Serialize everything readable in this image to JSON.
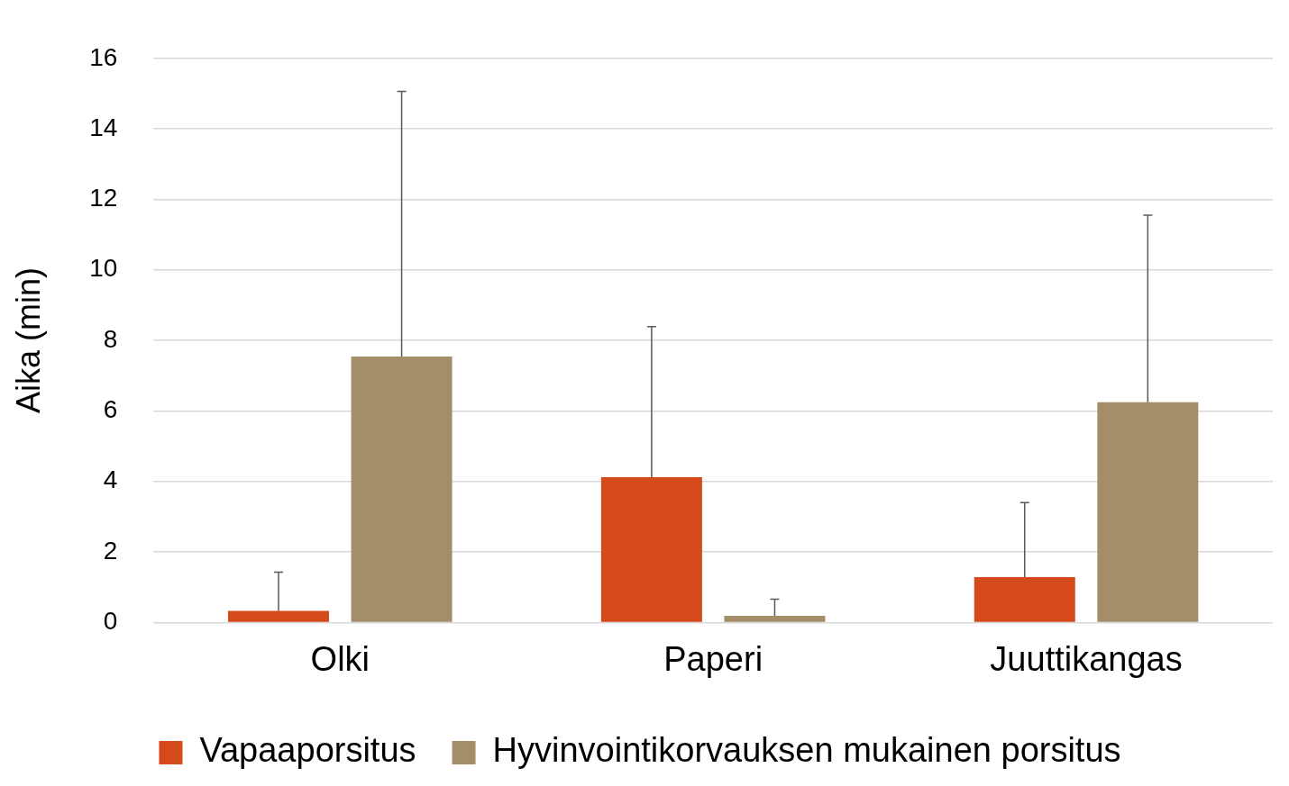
{
  "chart_data": {
    "type": "bar",
    "ylabel": "Aika (min)",
    "categories": [
      "Olki",
      "Paperi",
      "Juuttikangas"
    ],
    "series": [
      {
        "name": "Vapaaporsitus",
        "color": "#d54a1a",
        "values": [
          0.33,
          4.12,
          1.29
        ],
        "errors": [
          [
            0.33,
            1.43
          ],
          [
            4.12,
            8.39
          ],
          [
            1.29,
            3.4
          ]
        ]
      },
      {
        "name": "Hyvinvointikorvauksen mukainen porsitus",
        "color": "#a48e6a",
        "values": [
          7.54,
          0.19,
          6.25
        ],
        "errors": [
          [
            7.54,
            15.06
          ],
          [
            0.19,
            0.66
          ],
          [
            6.25,
            11.55
          ]
        ]
      }
    ],
    "ylim": [
      0,
      16
    ],
    "yticks": [
      0,
      2,
      4,
      6,
      8,
      10,
      12,
      14,
      16
    ],
    "grid": "y",
    "legend": "bottom"
  }
}
